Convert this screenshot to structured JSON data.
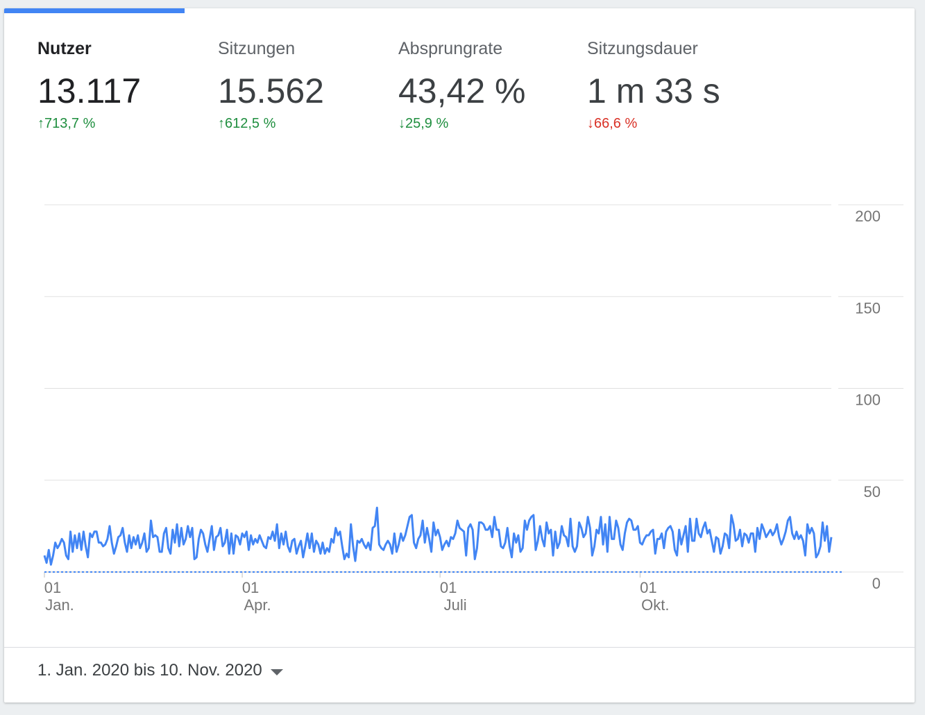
{
  "metrics": [
    {
      "label": "Nutzer",
      "value": "13.117",
      "change": "713,7 %",
      "direction": "up",
      "color": "#1e8e3e",
      "active": true
    },
    {
      "label": "Sitzungen",
      "value": "15.562",
      "change": "612,5 %",
      "direction": "up",
      "color": "#1e8e3e",
      "active": false
    },
    {
      "label": "Absprungrate",
      "value": "43,42 %",
      "change": "25,9 %",
      "direction": "down",
      "color": "#1e8e3e",
      "active": false
    },
    {
      "label": "Sitzungsdauer",
      "value": "1 m 33 s",
      "change": "66,6 %",
      "direction": "down",
      "color": "#d93025",
      "active": false
    }
  ],
  "date_range": "1. Jan. 2020 bis 10. Nov. 2020",
  "colors": {
    "accent": "#4285f4",
    "positive": "#1e8e3e",
    "negative": "#d93025"
  },
  "chart_data": {
    "type": "line",
    "ylim": [
      0,
      200
    ],
    "y_ticks": [
      "200",
      "150",
      "100",
      "50",
      "0"
    ],
    "x_ticks": [
      {
        "day": "01",
        "month": "Jan.",
        "index": 0
      },
      {
        "day": "01",
        "month": "Apr.",
        "index": 91
      },
      {
        "day": "01",
        "month": "Juli",
        "index": 182
      },
      {
        "day": "01",
        "month": "Okt.",
        "index": 274
      }
    ],
    "x_start": "2020-01-01",
    "x_end": "2020-11-10",
    "grid": true,
    "series": [
      {
        "style": "solid",
        "color": "#4285f4",
        "width": 3,
        "values": [
          9,
          5,
          12,
          4,
          9,
          16,
          13,
          15,
          18,
          16,
          9,
          7,
          22,
          11,
          20,
          13,
          21,
          12,
          22,
          14,
          8,
          21,
          19,
          22,
          22,
          16,
          16,
          14,
          15,
          18,
          25,
          16,
          10,
          14,
          19,
          20,
          24,
          16,
          11,
          20,
          13,
          19,
          15,
          20,
          13,
          16,
          21,
          11,
          13,
          28,
          19,
          20,
          19,
          11,
          11,
          21,
          24,
          13,
          10,
          23,
          16,
          26,
          14,
          24,
          15,
          18,
          25,
          19,
          24,
          7,
          8,
          18,
          23,
          21,
          15,
          11,
          18,
          25,
          12,
          19,
          20,
          24,
          14,
          16,
          23,
          10,
          21,
          10,
          20,
          19,
          15,
          21,
          19,
          22,
          12,
          20,
          15,
          18,
          16,
          20,
          17,
          14,
          13,
          19,
          18,
          22,
          17,
          26,
          13,
          21,
          15,
          22,
          14,
          11,
          17,
          18,
          10,
          14,
          17,
          8,
          14,
          21,
          13,
          21,
          11,
          17,
          15,
          10,
          16,
          10,
          13,
          11,
          18,
          16,
          24,
          20,
          22,
          14,
          7,
          10,
          8,
          26,
          14,
          6,
          17,
          16,
          18,
          15,
          13,
          16,
          12,
          24,
          25,
          35,
          15,
          13,
          12,
          15,
          17,
          15,
          10,
          21,
          11,
          15,
          21,
          17,
          20,
          25,
          30,
          31,
          16,
          13,
          18,
          20,
          28,
          16,
          24,
          18,
          11,
          27,
          20,
          23,
          19,
          12,
          15,
          17,
          14,
          19,
          18,
          21,
          28,
          24,
          23,
          22,
          9,
          24,
          26,
          23,
          7,
          13,
          27,
          27,
          26,
          23,
          23,
          25,
          19,
          30,
          23,
          23,
          14,
          13,
          16,
          24,
          14,
          8,
          21,
          16,
          20,
          11,
          13,
          28,
          23,
          28,
          30,
          31,
          12,
          17,
          25,
          18,
          14,
          27,
          21,
          23,
          9,
          22,
          13,
          16,
          25,
          20,
          19,
          14,
          29,
          14,
          11,
          14,
          27,
          24,
          19,
          21,
          30,
          24,
          9,
          14,
          23,
          21,
          30,
          15,
          26,
          11,
          30,
          18,
          18,
          28,
          24,
          15,
          12,
          21,
          27,
          29,
          28,
          23,
          23,
          25,
          16,
          15,
          18,
          20,
          20,
          22,
          23,
          10,
          18,
          18,
          21,
          13,
          22,
          24,
          25,
          22,
          12,
          9,
          23,
          15,
          20,
          25,
          11,
          29,
          17,
          17,
          29,
          21,
          19,
          24,
          27,
          21,
          23,
          17,
          11,
          19,
          18,
          10,
          14,
          21,
          20,
          13,
          31,
          26,
          17,
          18,
          23,
          14,
          21,
          20,
          16,
          21,
          21,
          11,
          24,
          18,
          26,
          23,
          19,
          21,
          23,
          20,
          22,
          26,
          19,
          15,
          18,
          22,
          28,
          30,
          21,
          18,
          22,
          18,
          20,
          17,
          9,
          26,
          21,
          24,
          21,
          8,
          10,
          14,
          27,
          17,
          25,
          11,
          19
        ]
      },
      {
        "style": "dashed",
        "color": "#4285f4",
        "width": 2,
        "values": [
          0,
          0,
          0,
          0,
          0,
          0,
          0,
          0,
          0,
          0,
          0,
          0,
          0,
          0,
          0,
          0,
          0,
          0,
          0,
          0,
          0,
          0,
          0,
          0,
          0,
          0,
          0,
          0,
          0,
          0,
          0,
          0,
          0,
          0,
          0,
          0,
          0,
          0,
          0,
          0,
          0,
          0,
          0,
          0,
          0,
          0,
          0,
          0,
          0,
          0,
          0,
          0,
          0,
          0,
          0,
          0,
          0,
          0,
          0,
          0,
          0,
          0,
          0,
          0,
          0,
          0,
          0,
          0,
          0,
          0,
          0,
          0,
          0,
          0,
          0,
          0,
          0,
          0,
          0,
          0,
          0,
          0,
          0,
          0,
          0,
          0,
          0,
          0,
          0,
          0,
          0,
          0,
          0,
          0,
          0,
          0,
          0,
          0,
          0,
          0,
          0,
          0,
          0,
          0,
          0,
          0,
          0,
          0,
          0,
          0,
          0,
          0,
          0,
          0,
          0,
          0,
          0,
          0,
          0,
          0,
          0,
          0,
          0,
          0,
          0,
          0,
          0,
          0,
          0,
          0,
          0,
          0,
          0,
          0,
          0,
          0,
          0,
          0,
          0,
          0,
          0,
          0,
          0,
          0,
          0,
          0,
          0,
          0,
          0,
          0,
          0,
          0,
          0,
          0,
          0,
          0,
          0,
          0,
          0,
          0,
          0,
          0,
          0,
          0,
          0,
          0,
          0,
          0,
          0,
          0,
          0,
          0,
          0,
          0,
          0,
          0,
          0,
          0,
          0,
          0,
          0,
          0,
          0,
          0,
          0,
          0,
          0,
          0,
          0,
          0,
          0,
          0,
          0,
          0,
          0,
          0,
          0,
          0,
          0,
          0,
          0,
          0,
          0,
          0,
          0,
          0,
          0,
          0,
          0,
          0,
          0,
          0,
          0,
          0,
          0,
          0,
          0,
          0,
          0,
          0,
          0,
          0,
          0,
          0,
          0,
          0,
          0,
          0,
          0,
          0,
          0,
          0,
          0,
          0,
          0,
          0,
          0,
          0,
          0,
          0,
          0,
          0,
          0,
          0,
          0,
          0,
          0,
          0,
          0,
          0,
          0,
          0,
          0,
          0,
          0,
          0,
          0,
          0,
          0,
          0,
          0,
          0,
          0,
          0,
          0,
          0,
          0,
          0,
          0,
          0,
          0,
          0,
          0,
          0,
          0,
          0,
          0,
          0,
          0,
          0,
          0,
          0,
          0,
          0,
          0,
          0,
          0,
          0,
          0,
          0,
          0,
          0,
          0,
          0,
          0,
          0,
          0,
          0,
          0,
          0,
          0,
          0,
          0,
          0,
          0,
          0,
          0,
          0,
          0,
          0,
          0,
          0,
          0,
          0,
          0,
          0,
          0,
          0,
          0,
          0,
          0,
          0,
          0,
          0,
          0,
          0,
          0,
          0,
          0,
          0,
          0,
          0,
          0,
          0,
          0,
          0,
          0,
          0,
          0,
          0,
          0,
          0,
          0,
          0,
          0,
          0,
          0,
          0,
          0,
          0,
          0,
          0,
          0,
          0,
          0,
          0,
          0,
          0,
          0,
          0,
          0,
          0,
          0,
          0,
          0,
          0,
          0,
          0
        ]
      }
    ]
  }
}
